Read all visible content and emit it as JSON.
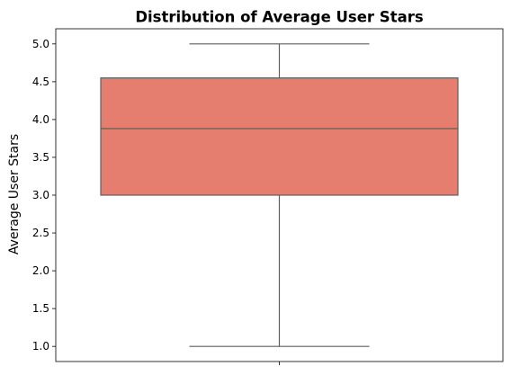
{
  "chart_data": {
    "type": "box",
    "title": "Distribution of Average User Stars",
    "xlabel": "",
    "ylabel": "Average User Stars",
    "ylim": [
      0.8,
      5.2
    ],
    "yticks": [
      "1.0",
      "1.5",
      "2.0",
      "2.5",
      "3.0",
      "3.5",
      "4.0",
      "4.5",
      "5.0"
    ],
    "box": {
      "min": 1.0,
      "q1": 3.0,
      "median": 3.88,
      "q3": 4.55,
      "max": 5.0
    },
    "colors": {
      "box_fill": "#e57e6f",
      "lines": "#5f5f5f"
    }
  }
}
